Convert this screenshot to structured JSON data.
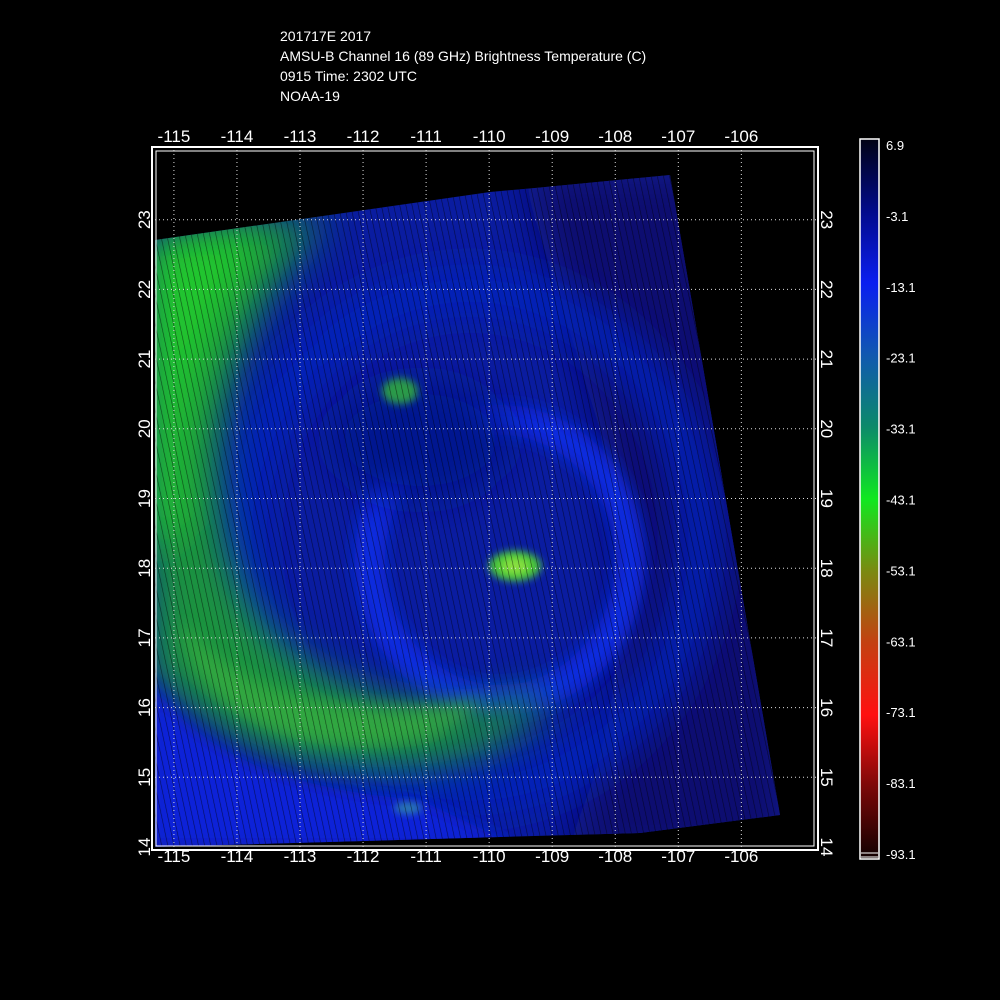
{
  "title": {
    "line1": "201717E 2017",
    "line2": "AMSU-B Channel 16 (89 GHz) Brightness Temperature (C)",
    "line3": "0915 Time: 2302 UTC",
    "line4": "NOAA-19"
  },
  "map": {
    "lon_ticks": [
      "-115",
      "-114",
      "-113",
      "-112",
      "-111",
      "-110",
      "-109",
      "-108",
      "-107",
      "-106"
    ],
    "lat_ticks": [
      "14",
      "15",
      "16",
      "17",
      "18",
      "19",
      "20",
      "21",
      "22",
      "23"
    ],
    "lon_range": [
      -115.3,
      -104.8
    ],
    "lat_range": [
      14.0,
      24.0
    ],
    "grid": "dotted"
  },
  "colorbar": {
    "labels": [
      "6.9",
      "-3.1",
      "-13.1",
      "-23.1",
      "-33.1",
      "-43.1",
      "-53.1",
      "-63.1",
      "-73.1",
      "-83.1",
      "-93.1"
    ],
    "colors": [
      "#020214",
      "#020a8a",
      "#0a1ef0",
      "#1058b0",
      "#0c8a6a",
      "#10e820",
      "#7a8a10",
      "#c44010",
      "#ff1010",
      "#7a0808",
      "#100000"
    ]
  }
}
